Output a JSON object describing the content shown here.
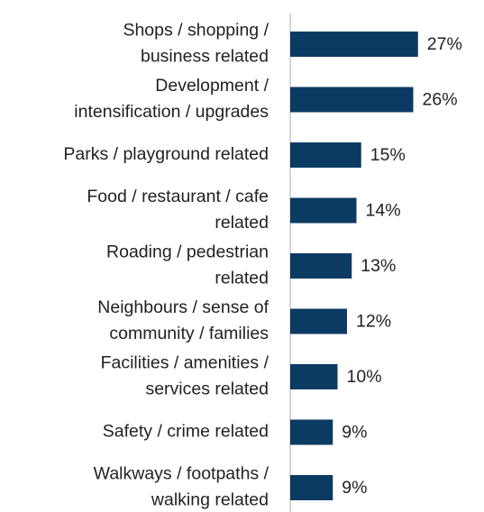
{
  "chart_data": {
    "type": "barh",
    "categories": [
      [
        "Shops / shopping /",
        "business related"
      ],
      [
        "Development /",
        "intensification / upgrades"
      ],
      [
        "Parks / playground related"
      ],
      [
        "Food / restaurant / cafe",
        "related"
      ],
      [
        "Roading / pedestrian",
        "related"
      ],
      [
        "Neighbours / sense of",
        "community / families"
      ],
      [
        "Facilities / amenities /",
        "services related"
      ],
      [
        "Safety / crime related"
      ],
      [
        "Walkways / footpaths /",
        "walking related"
      ]
    ],
    "values": [
      27,
      26,
      15,
      14,
      13,
      12,
      10,
      9,
      9
    ],
    "value_labels": [
      "27%",
      "26%",
      "15%",
      "14%",
      "13%",
      "12%",
      "10%",
      "9%",
      "9%"
    ],
    "color": "#0b3a63"
  }
}
